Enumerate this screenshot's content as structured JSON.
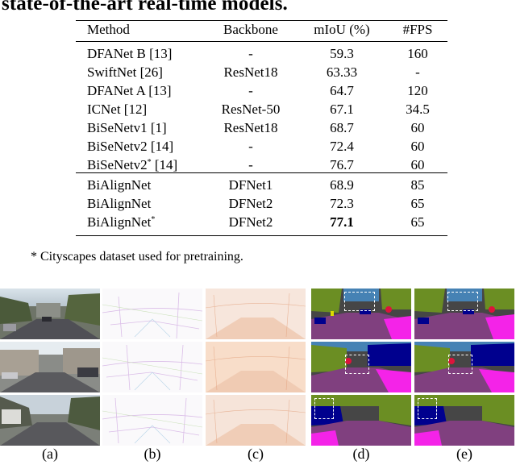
{
  "heading": "state-of-the-art real-time models.",
  "table": {
    "headers": [
      "Method",
      "Backbone",
      "mIoU (%)",
      "#FPS"
    ],
    "group1": [
      {
        "method": "DFANet B [13]",
        "sup": "",
        "backbone": "-",
        "miou": "59.3",
        "fps": "160"
      },
      {
        "method": "SwiftNet [26]",
        "sup": "",
        "backbone": "ResNet18",
        "miou": "63.33",
        "fps": "-"
      },
      {
        "method": "DFANet A [13]",
        "sup": "",
        "backbone": "-",
        "miou": "64.7",
        "fps": "120"
      },
      {
        "method": "ICNet [12]",
        "sup": "",
        "backbone": "ResNet-50",
        "miou": "67.1",
        "fps": "34.5"
      },
      {
        "method": "BiSeNetv1 [1]",
        "sup": "",
        "backbone": "ResNet18",
        "miou": "68.7",
        "fps": "60"
      },
      {
        "method": "BiSeNetv2 [14]",
        "sup": "",
        "backbone": "-",
        "miou": "72.4",
        "fps": "60"
      },
      {
        "method": "BiSeNetv2",
        "sup": "*",
        "suffix": " [14]",
        "backbone": "-",
        "miou": "76.7",
        "fps": "60"
      }
    ],
    "group2": [
      {
        "method": "BiAlignNet",
        "sup": "",
        "backbone": "DFNet1",
        "miou": "68.9",
        "fps": "85",
        "bold": false
      },
      {
        "method": "BiAlignNet",
        "sup": "",
        "backbone": "DFNet2",
        "miou": "72.3",
        "fps": "65",
        "bold": false
      },
      {
        "method": "BiAlignNet",
        "sup": "*",
        "backbone": "DFNet2",
        "miou": "77.1",
        "fps": "65",
        "bold": true
      }
    ]
  },
  "footnote": "* Cityscapes dataset used for pretraining.",
  "figure": {
    "captions": [
      "(a)",
      "(b)",
      "(c)",
      "(d)",
      "(e)"
    ],
    "column_content": [
      "input image",
      "flow field (b)",
      "flow field (c)",
      "segmentation prediction",
      "segmentation ground truth"
    ],
    "colors": {
      "road": "#80407f",
      "sidewalk": "#f423e8",
      "building": "#464646",
      "vegetation": "#6b8e23",
      "sky": "#4682b4",
      "car": "#00008e",
      "person": "#dc143c",
      "pole": "#999999",
      "sign": "#dcdc00"
    }
  }
}
